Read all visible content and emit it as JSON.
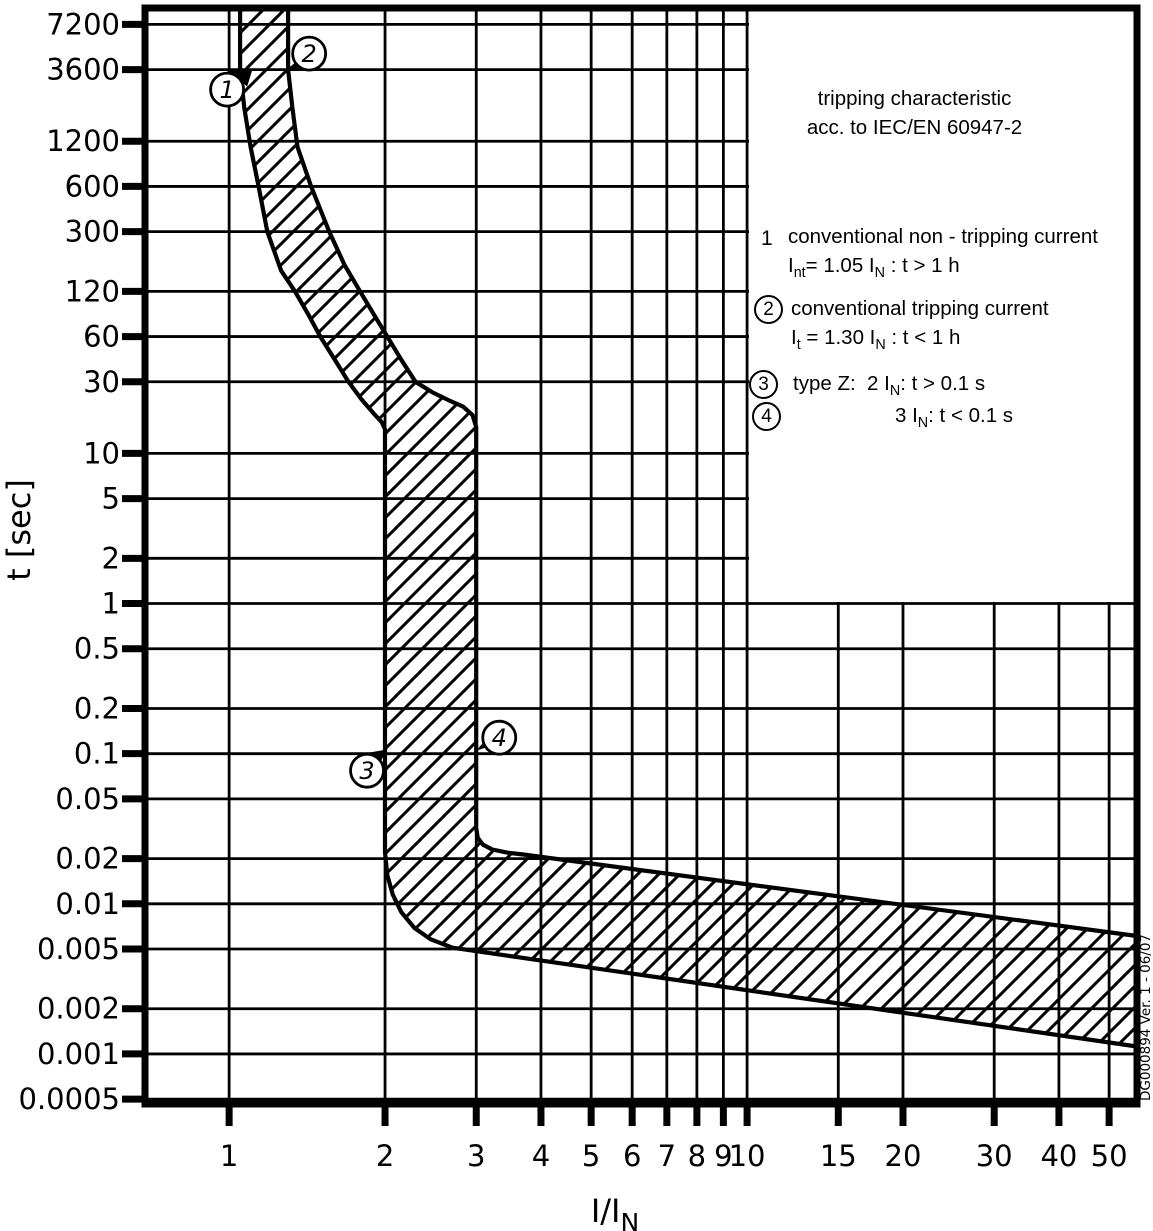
{
  "page": {
    "background": "#ffffff",
    "ink": "#000000"
  },
  "chart_data": {
    "type": "area",
    "title": "tripping characteristic acc. to IEC/EN 60947-2",
    "x_scale": "log",
    "y_scale": "log",
    "x_axis": {
      "label_main": "I/I",
      "label_sub": "N"
    },
    "y_axis": {
      "label": "t [sec]"
    },
    "x_ticks": [
      "1",
      "2",
      "3",
      "4",
      "5",
      "6",
      "7",
      "8",
      "9",
      "10",
      "15",
      "20",
      "30",
      "40",
      "50"
    ],
    "y_ticks": [
      "7200",
      "3600",
      "1200",
      "600",
      "300",
      "120",
      "60",
      "30",
      "10",
      "5",
      "2",
      "1",
      "0.5",
      "0.2",
      "0.1",
      "0.05",
      "0.02",
      "0.01",
      "0.005",
      "0.002",
      "0.001",
      "0.0005"
    ],
    "xlim": [
      0.688,
      56.6
    ],
    "ylim": [
      0.000464,
      9260
    ],
    "grid": "on",
    "band": {
      "name": "type Z tripping band (hatched tolerance band)",
      "lower_boundary": [
        [
          1.05,
          9260
        ],
        [
          1.05,
          3600
        ],
        [
          1.07,
          2000
        ],
        [
          1.1,
          1100
        ],
        [
          1.14,
          600
        ],
        [
          1.185,
          300
        ],
        [
          1.26,
          165
        ],
        [
          1.34,
          120
        ],
        [
          1.42,
          85
        ],
        [
          1.5,
          60
        ],
        [
          1.6,
          42
        ],
        [
          1.7,
          30
        ],
        [
          1.8,
          23
        ],
        [
          1.9,
          18.5
        ],
        [
          1.97,
          16.2
        ],
        [
          2.0,
          14.5
        ],
        [
          2.0,
          0.022
        ],
        [
          2.02,
          0.0155
        ],
        [
          2.07,
          0.0115
        ],
        [
          2.15,
          0.0088
        ],
        [
          2.28,
          0.0069
        ],
        [
          2.45,
          0.0058
        ],
        [
          2.7,
          0.0051
        ],
        [
          56.6,
          0.00112
        ]
      ],
      "upper_boundary": [
        [
          1.3,
          9260
        ],
        [
          1.3,
          3600
        ],
        [
          1.325,
          2000
        ],
        [
          1.355,
          1100
        ],
        [
          1.44,
          600
        ],
        [
          1.56,
          300
        ],
        [
          1.67,
          180
        ],
        [
          1.79,
          120
        ],
        [
          1.9,
          85
        ],
        [
          2.02,
          60
        ],
        [
          2.15,
          42
        ],
        [
          2.29,
          30
        ],
        [
          2.47,
          25.5
        ],
        [
          2.66,
          22.5
        ],
        [
          2.83,
          20.5
        ],
        [
          2.95,
          18
        ],
        [
          3.0,
          15
        ],
        [
          3.0,
          0.032
        ],
        [
          3.02,
          0.0275
        ],
        [
          3.09,
          0.0248
        ],
        [
          3.22,
          0.023
        ],
        [
          3.45,
          0.0219
        ],
        [
          3.7,
          0.0213
        ],
        [
          56.6,
          0.0061
        ]
      ]
    },
    "markers": [
      {
        "label": "1",
        "i": 1.05,
        "t": 3600,
        "circle_dx": -13,
        "circle_dy": 20,
        "tri": [
          [
            12,
            1
          ],
          [
            -11,
            1
          ],
          [
            7,
            17
          ]
        ]
      },
      {
        "label": "2",
        "i": 1.3,
        "t": 3600,
        "circle_dx": 21,
        "circle_dy": -16,
        "tri": [
          [
            -4,
            2
          ],
          [
            12,
            -11
          ],
          [
            17,
            -2
          ]
        ]
      },
      {
        "label": "3",
        "i": 2.0,
        "t": 0.1,
        "circle_dx": -18,
        "circle_dy": 17,
        "tri": [
          [
            1,
            -4
          ],
          [
            -17,
            -1
          ],
          [
            -5,
            10
          ]
        ]
      },
      {
        "label": "4",
        "i": 3.0,
        "t": 0.1,
        "circle_dx": 23,
        "circle_dy": -16,
        "tri": [
          [
            0,
            -3
          ],
          [
            16,
            -22
          ],
          [
            24,
            -11
          ]
        ]
      }
    ]
  },
  "legend": {
    "title_line1": "tripping characteristic",
    "title_line2": "acc. to IEC/EN 60947-2",
    "items": [
      {
        "num": "1",
        "circled": false,
        "line1": "conventional non - tripping current",
        "line2": "I~nt~= 1.05 I~N~ : t > 1 h"
      },
      {
        "num": "2",
        "circled": true,
        "line1": "conventional tripping current",
        "line2": "I~t~ = 1.30 I~N~ : t < 1 h"
      },
      {
        "num": "3",
        "circled": true,
        "line1": "type Z:  2 I~N~: t > 0.1 s",
        "line2": ""
      },
      {
        "num": "4",
        "circled": true,
        "line1": "3 I~N~: t < 0.1 s",
        "line2": ""
      }
    ]
  },
  "footer": {
    "doc_ref": "DG000894 Ver. 1 - 06/07"
  }
}
